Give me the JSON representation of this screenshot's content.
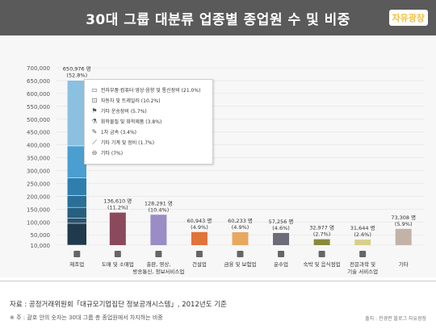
{
  "title": "30대 그룹 대분류 업종별 종업원 수 및 비중",
  "logo_text": "자유광장",
  "chart_data": {
    "type": "bar",
    "ylim": [
      10000,
      700000
    ],
    "yticks": [
      10000,
      50000,
      100000,
      150000,
      200000,
      250000,
      300000,
      350000,
      400000,
      450000,
      500000,
      550000,
      600000,
      650000,
      700000
    ],
    "ytick_labels": [
      "10,000",
      "50,000",
      "100,000",
      "150,000",
      "200,000",
      "250,000",
      "300,000",
      "350,000",
      "400,000",
      "450,000",
      "500,000",
      "550,000",
      "600,000",
      "650,000",
      "700,000"
    ],
    "categories": [
      {
        "label": "제조업",
        "value": 650976,
        "value_label": "650,976 명",
        "pct_label": "(52.8%)",
        "color": "#2d4a5e",
        "icon": "factory-icon"
      },
      {
        "label": "도매 및 소매업",
        "value": 136610,
        "value_label": "136,610 명",
        "pct_label": "(11.2%)",
        "color": "#8b4a5c",
        "icon": "cart-icon"
      },
      {
        "label": "출판, 영상, 방송통신, 정보서비스업",
        "value": 128291,
        "value_label": "128,291 명",
        "pct_label": "(10.4%)",
        "color": "#9a8cc4",
        "icon": "broadcast-icon"
      },
      {
        "label": "건설업",
        "value": 60943,
        "value_label": "60,943 명",
        "pct_label": "(4.9%)",
        "color": "#e0743a",
        "icon": "building-icon"
      },
      {
        "label": "금융 및 보험업",
        "value": 60233,
        "value_label": "60,233 명",
        "pct_label": "(4.9%)",
        "color": "#e8a860",
        "icon": "piggy-bank-icon"
      },
      {
        "label": "운수업",
        "value": 57256,
        "value_label": "57,256 명",
        "pct_label": "(4.6%)",
        "color": "#6b6b7a",
        "icon": "truck-icon"
      },
      {
        "label": "숙박 및 음식점업",
        "value": 32977,
        "value_label": "32,977 명",
        "pct_label": "(2.7%)",
        "color": "#8a8a3a",
        "icon": "dining-icon"
      },
      {
        "label": "전문과학 및 기술 서비스업",
        "value": 31644,
        "value_label": "31,644 명",
        "pct_label": "(2.6%)",
        "color": "#d8cf8a",
        "icon": "microscope-icon"
      },
      {
        "label": "기타",
        "value": 73308,
        "value_label": "73,308 명",
        "pct_label": "(5.9%)",
        "color": "#c4b2a8",
        "icon": ""
      }
    ],
    "stack_segments": [
      {
        "label": "전자부품·컴퓨터·영상·음향 및 통신장비 (21.0%)",
        "color": "#8cc0e0",
        "icon": "monitor-icon"
      },
      {
        "label": "자동차 및 트레일러 (10.2%)",
        "color": "#4a9ed0",
        "icon": "car-icon"
      },
      {
        "label": "기타 운송장비 (5.7%)",
        "color": "#2f7fae",
        "icon": "crane-icon"
      },
      {
        "label": "화학물질 및 화학제품 (3.8%)",
        "color": "#2a6f96",
        "icon": "flask-icon"
      },
      {
        "label": "1차 금속 (3.4%)",
        "color": "#265f80",
        "icon": "wrench-icon"
      },
      {
        "label": "기타 기계 및 장비 (1.7%)",
        "color": "#2b5470",
        "icon": "tool-icon"
      },
      {
        "label": "기타 (7%)",
        "color": "#1f3a4c",
        "icon": "minus-circle-icon"
      }
    ]
  },
  "footer": {
    "source": "자료 : 공정거래위원회「대규모기업집단 정보공개시스템」, 2012년도 기준",
    "note": "※ 주 : 괄호 안의 숫자는 30대 그룹 총 종업원에서 차지하는 비중",
    "credit": "출처 : 전경련 블로그 자유광장"
  }
}
